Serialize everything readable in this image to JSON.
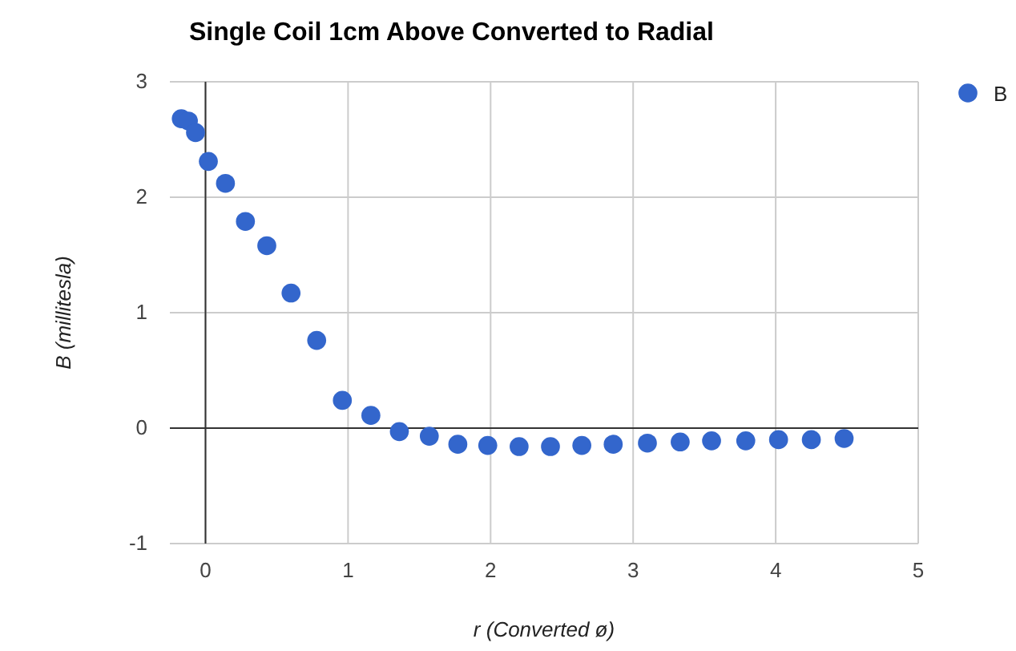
{
  "chart_data": {
    "type": "scatter",
    "title": "Single Coil 1cm Above Converted to Radial",
    "xlabel": "r (Converted ø)",
    "ylabel": "B (millitesla)",
    "series": [
      {
        "name": "B",
        "color": "#3366cc",
        "x": [
          -0.17,
          -0.12,
          -0.07,
          0.02,
          0.14,
          0.28,
          0.43,
          0.6,
          0.78,
          0.96,
          1.16,
          1.36,
          1.57,
          1.77,
          1.98,
          2.2,
          2.42,
          2.64,
          2.86,
          3.1,
          3.33,
          3.55,
          3.79,
          4.02,
          4.25,
          4.48
        ],
        "values": [
          2.68,
          2.66,
          2.56,
          2.31,
          2.12,
          1.79,
          1.58,
          1.17,
          0.76,
          0.24,
          0.11,
          -0.03,
          -0.07,
          -0.14,
          -0.15,
          -0.16,
          -0.16,
          -0.15,
          -0.14,
          -0.13,
          -0.12,
          -0.11,
          -0.11,
          -0.1,
          -0.1,
          -0.09
        ]
      }
    ],
    "xlim": [
      -0.25,
      5
    ],
    "xticks": [
      0,
      1,
      2,
      3,
      4,
      5
    ],
    "ylim": [
      -1,
      3
    ],
    "yticks": [
      -1,
      0,
      1,
      2,
      3
    ],
    "grid": true,
    "legend": "top right",
    "marker": "circle"
  }
}
